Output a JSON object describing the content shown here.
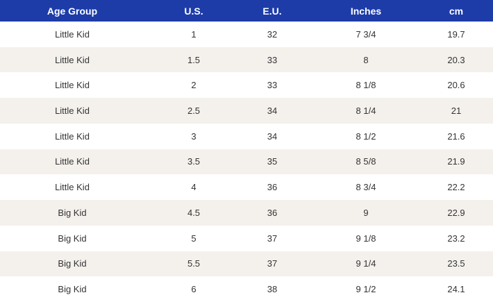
{
  "table": {
    "header": [
      "Age Group",
      "U.S.",
      "E.U.",
      "Inches",
      "cm"
    ],
    "rows": [
      [
        "Little Kid",
        1,
        32,
        "7 3/4",
        19.7
      ],
      [
        "Little Kid",
        1.5,
        33,
        "8",
        20.3
      ],
      [
        "Little Kid",
        2,
        33,
        "8 1/8",
        20.6
      ],
      [
        "Little Kid",
        2.5,
        34,
        "8 1/4",
        21
      ],
      [
        "Little Kid",
        3,
        34,
        "8 1/2",
        21.6
      ],
      [
        "Little Kid",
        3.5,
        35,
        "8 5/8",
        21.9
      ],
      [
        "Little Kid",
        4,
        36,
        "8 3/4",
        22.2
      ],
      [
        "Big Kid",
        4.5,
        36,
        "9",
        22.9
      ],
      [
        "Big Kid",
        5,
        37,
        "9 1/8",
        23.2
      ],
      [
        "Big Kid",
        5.5,
        37,
        "9 1/4",
        23.5
      ],
      [
        "Big Kid",
        6,
        38,
        "9 1/2",
        24.1
      ]
    ]
  }
}
